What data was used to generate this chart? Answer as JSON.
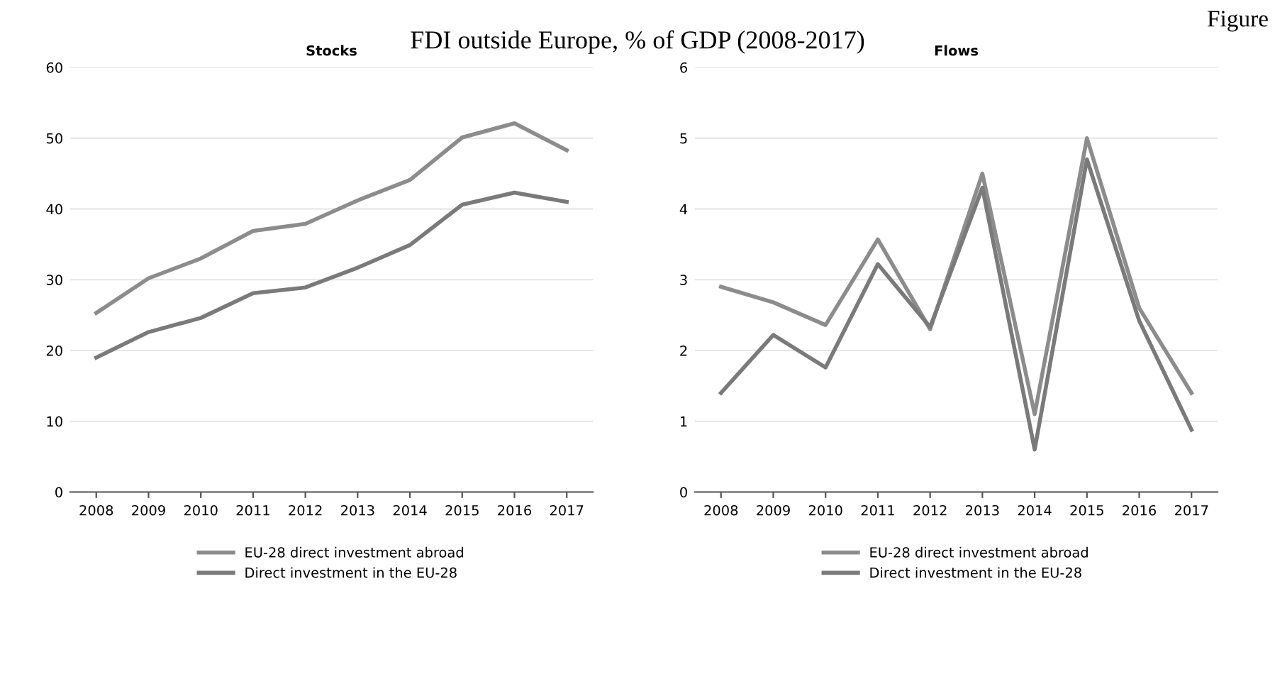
{
  "chart_data": [
    {
      "type": "line",
      "title": "Stocks",
      "annotations": [
        "Figure",
        "FDI outside Europe, % of GDP (2008-2017)"
      ],
      "categories": [
        "2008",
        "2009",
        "2010",
        "2011",
        "2012",
        "2013",
        "2014",
        "2015",
        "2016",
        "2017"
      ],
      "series": [
        {
          "name": "EU-28 direct investment abroad",
          "color": "#8c8c8c",
          "values": [
            25.3,
            30.2,
            33,
            36.9,
            37.9,
            41.2,
            44.1,
            50.1,
            52.1,
            48.3
          ]
        },
        {
          "name": "Direct investment in the EU-28",
          "color": "#7a7a7a",
          "values": [
            19,
            22.6,
            24.6,
            28.1,
            28.9,
            31.7,
            34.9,
            40.6,
            42.3,
            41
          ]
        }
      ],
      "ylim": [
        0,
        60
      ],
      "yticks": [
        0,
        10,
        20,
        30,
        40,
        50,
        60
      ],
      "grid": "y",
      "legend": "bottom"
    },
    {
      "type": "line",
      "title": "Flows",
      "categories": [
        "2008",
        "2009",
        "2010",
        "2011",
        "2012",
        "2013",
        "2014",
        "2015",
        "2016",
        "2017"
      ],
      "series": [
        {
          "name": "EU-28 direct investment abroad",
          "color": "#8c8c8c",
          "values": [
            2.9,
            2.68,
            2.36,
            3.57,
            2.3,
            4.5,
            1.1,
            5.0,
            2.6,
            1.4
          ]
        },
        {
          "name": "Direct investment in the EU-28",
          "color": "#7a7a7a",
          "values": [
            1.4,
            2.22,
            1.76,
            3.22,
            2.33,
            4.3,
            0.6,
            4.7,
            2.42,
            0.88
          ]
        }
      ],
      "ylim": [
        0,
        6
      ],
      "yticks": [
        0,
        1,
        2,
        3,
        4,
        5,
        6
      ],
      "grid": "y",
      "legend": "bottom"
    }
  ]
}
